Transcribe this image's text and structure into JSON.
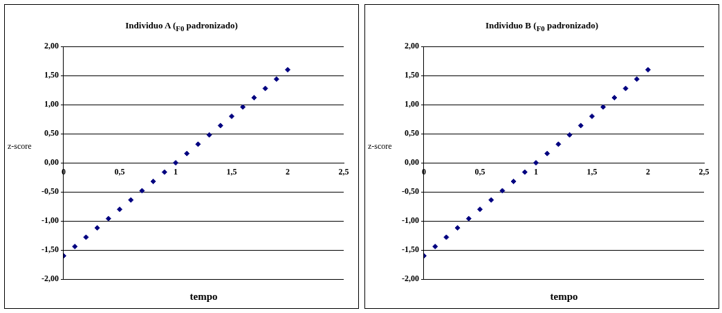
{
  "chart_data": [
    {
      "type": "scatter",
      "title": "Individuo A ($_{F0}$ padronizado)",
      "xlabel": "tempo",
      "ylabel": "z-score",
      "x": [
        0,
        0.1,
        0.2,
        0.3,
        0.4,
        0.5,
        0.6,
        0.7,
        0.8,
        0.9,
        1,
        1.1,
        1.2,
        1.3,
        1.4,
        1.5,
        1.6,
        1.7,
        1.8,
        1.9,
        2
      ],
      "series": [
        {
          "color": "#000080",
          "values": [
            -1.6,
            -1.44,
            -1.28,
            -1.12,
            -0.96,
            -0.8,
            -0.64,
            -0.48,
            -0.32,
            -0.16,
            0,
            0.16,
            0.32,
            0.48,
            0.64,
            0.8,
            0.96,
            1.12,
            1.28,
            1.44,
            1.6
          ]
        }
      ],
      "xlim": [
        0,
        2.5
      ],
      "xticks": [
        0,
        {
          "value": 0.5,
          "label": "0,5"
        },
        1,
        {
          "value": 1.5,
          "label": "1,5"
        },
        2,
        {
          "value": 2.5,
          "label": "2,5"
        }
      ],
      "ylim": [
        -2,
        2
      ],
      "yticks": [
        {
          "value": -2,
          "label": "-2,00"
        },
        {
          "value": -1.5,
          "label": "-1,50"
        },
        {
          "value": -1,
          "label": "-1,00"
        },
        {
          "value": -0.5,
          "label": "-0,50"
        },
        {
          "value": 0,
          "label": "0,00"
        },
        {
          "value": 0.5,
          "label": "0,50"
        },
        {
          "value": 1,
          "label": "1,00"
        },
        {
          "value": 1.5,
          "label": "1,50"
        },
        {
          "value": 2,
          "label": "2,00"
        }
      ],
      "grid": "y",
      "legend": false,
      "marker": "diamond"
    },
    {
      "type": "scatter",
      "title": "Individuo B ($_{F0}$ padronizado)",
      "xlabel": "tempo",
      "ylabel": "z-score",
      "x": [
        0,
        0.1,
        0.2,
        0.3,
        0.4,
        0.5,
        0.6,
        0.7,
        0.8,
        0.9,
        1,
        1.1,
        1.2,
        1.3,
        1.4,
        1.5,
        1.6,
        1.7,
        1.8,
        1.9,
        2
      ],
      "series": [
        {
          "color": "#000080",
          "values": [
            -1.6,
            -1.44,
            -1.28,
            -1.12,
            -0.96,
            -0.8,
            -0.64,
            -0.48,
            -0.32,
            -0.16,
            0,
            0.16,
            0.32,
            0.48,
            0.64,
            0.8,
            0.96,
            1.12,
            1.28,
            1.44,
            1.6
          ]
        }
      ],
      "xlim": [
        0,
        2.5
      ],
      "xticks": [
        0,
        {
          "value": 0.5,
          "label": "0,5"
        },
        1,
        {
          "value": 1.5,
          "label": "1,5"
        },
        2,
        {
          "value": 2.5,
          "label": "2,5"
        }
      ],
      "ylim": [
        -2,
        2
      ],
      "yticks": [
        {
          "value": -2,
          "label": "-2,00"
        },
        {
          "value": -1.5,
          "label": "-1,50"
        },
        {
          "value": -1,
          "label": "-1,00"
        },
        {
          "value": -0.5,
          "label": "-0,50"
        },
        {
          "value": 0,
          "label": "0,00"
        },
        {
          "value": 0.5,
          "label": "0,50"
        },
        {
          "value": 1,
          "label": "1,00"
        },
        {
          "value": 1.5,
          "label": "1,50"
        },
        {
          "value": 2,
          "label": "2,00"
        }
      ],
      "grid": "y",
      "legend": false,
      "marker": "diamond"
    }
  ]
}
